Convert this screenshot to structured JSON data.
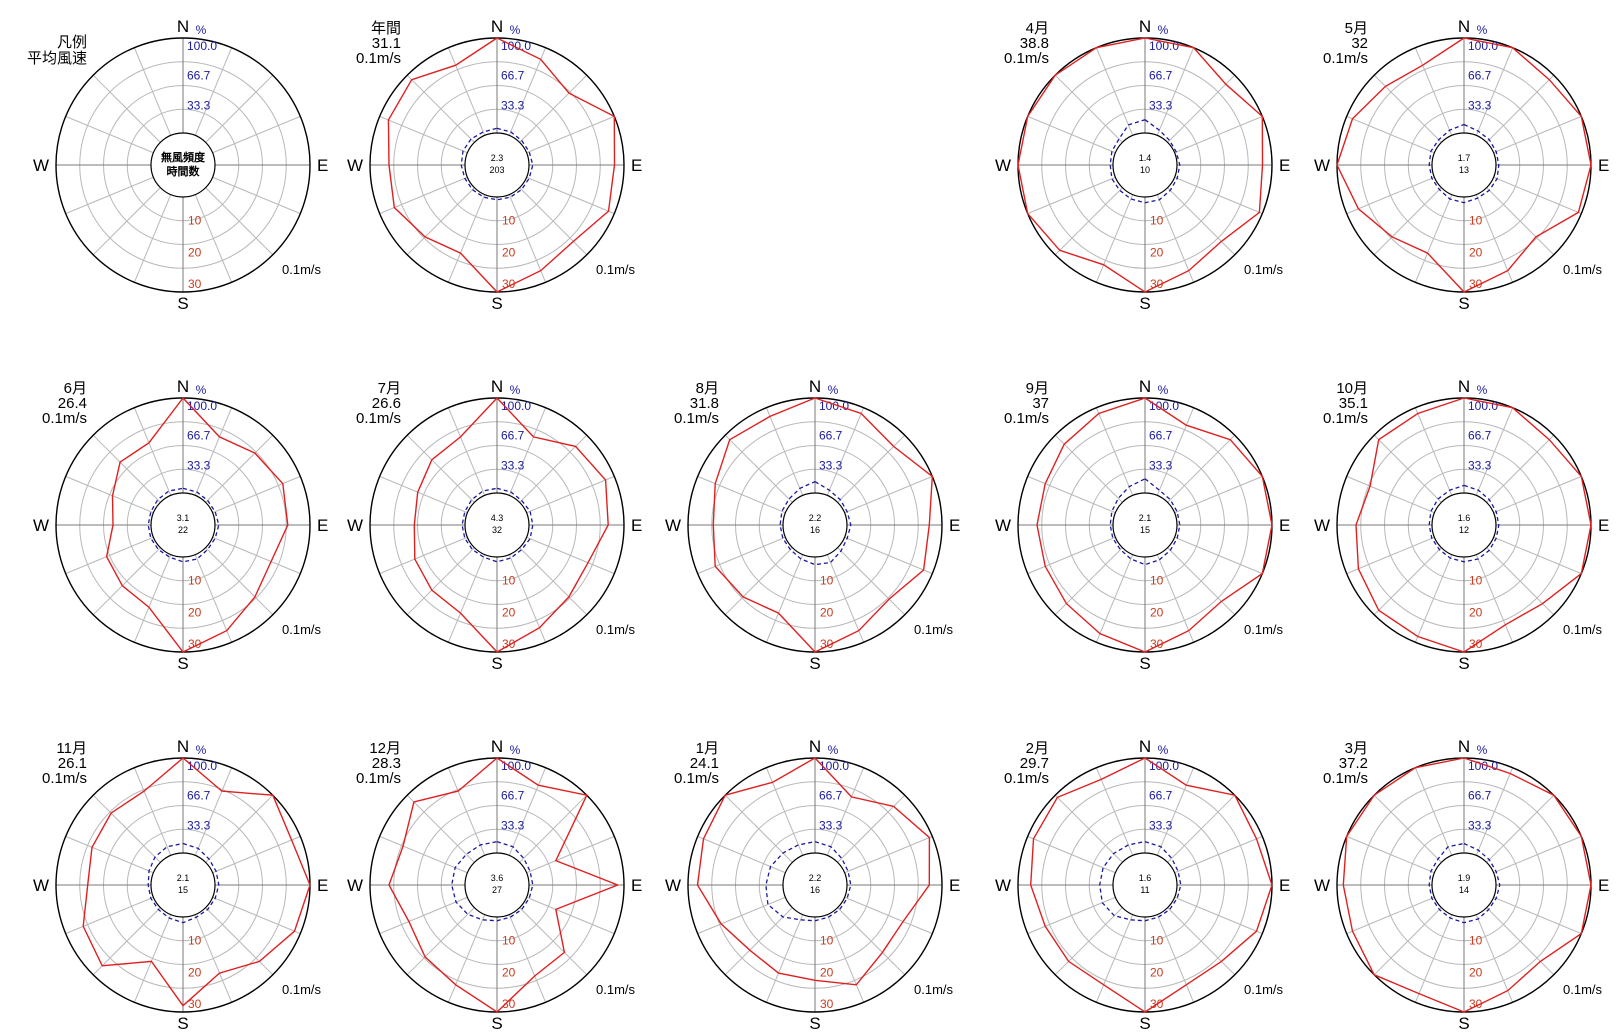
{
  "colors": {
    "speed_line": "#e02020",
    "frequency_line": "#1a1aa0",
    "grid": "#b8b8b8",
    "outline": "#000000",
    "percent_axis_text": "#1a1aa0",
    "speed_axis_text": "#c83c1e"
  },
  "labels": {
    "north": "N",
    "east": "E",
    "south": "S",
    "west": "W",
    "percent_unit": "%",
    "speed_unit": "0.1m/s"
  },
  "percent_ticks": [
    "100.0",
    "66.7",
    "33.3"
  ],
  "speed_ticks": [
    "10",
    "20",
    "30"
  ],
  "legend": {
    "title": "凡例",
    "subtitle": "平均風速",
    "center_line1": "無風頻度",
    "center_line2": "時間数"
  },
  "chart_data": {
    "type": "radar",
    "directions": [
      "N",
      "NNE",
      "NE",
      "ENE",
      "E",
      "ESE",
      "SE",
      "SSE",
      "S",
      "SSW",
      "SW",
      "WSW",
      "W",
      "WNW",
      "NW",
      "NNW"
    ],
    "speed_axis": {
      "label": "0.1m/s",
      "range": [
        0,
        30
      ],
      "ticks": [
        10,
        20,
        30
      ]
    },
    "frequency_axis": {
      "label": "%",
      "range": [
        0,
        100
      ],
      "ticks": [
        33.3,
        66.7,
        100.0
      ]
    },
    "series_kinds": [
      "speed",
      "frequency"
    ],
    "panels": [
      {
        "label": "年間",
        "mean_speed": "31.1",
        "calm": "2.3",
        "hours": "203",
        "speed": [
          30,
          26,
          22,
          30,
          27,
          28,
          24,
          26,
          30,
          20,
          22,
          25,
          24,
          27,
          28,
          24
        ],
        "frequency": [
          5,
          4,
          3,
          3,
          4,
          3,
          3,
          3,
          3,
          3,
          3,
          3,
          4,
          5,
          5,
          4
        ]
      },
      {
        "label": "4月",
        "mean_speed": "38.8",
        "calm": "1.4",
        "hours": "10",
        "speed": [
          30,
          32,
          26,
          30,
          27,
          29,
          24,
          26,
          30,
          24,
          28,
          30,
          30,
          33,
          32,
          30
        ],
        "frequency": [
          14,
          6,
          3,
          2,
          3,
          3,
          4,
          6,
          6,
          5,
          4,
          4,
          3,
          4,
          5,
          12
        ]
      },
      {
        "label": "5月",
        "mean_speed": "32",
        "calm": "1.7",
        "hours": "13",
        "speed": [
          30,
          30,
          28,
          30,
          30,
          29,
          22,
          26,
          30,
          20,
          22,
          26,
          30,
          28,
          25,
          24
        ],
        "frequency": [
          9,
          5,
          4,
          3,
          3,
          4,
          4,
          4,
          6,
          5,
          3,
          3,
          3,
          4,
          4,
          6
        ]
      },
      {
        "label": "6月",
        "mean_speed": "26.4",
        "calm": "3.1",
        "hours": "22",
        "speed": [
          30,
          20,
          22,
          24,
          23,
          20,
          22,
          26,
          30,
          18,
          17,
          16,
          12,
          14,
          18,
          18
        ],
        "frequency": [
          5,
          4,
          3,
          3,
          4,
          3,
          3,
          5,
          5,
          3,
          3,
          3,
          3,
          3,
          4,
          5
        ]
      },
      {
        "label": "7月",
        "mean_speed": "26.6",
        "calm": "4.3",
        "hours": "32",
        "speed": [
          30,
          20,
          25,
          27,
          25,
          21,
          22,
          25,
          30,
          20,
          19,
          18,
          16,
          17,
          19,
          20
        ],
        "frequency": [
          5,
          4,
          3,
          4,
          4,
          4,
          3,
          4,
          5,
          3,
          3,
          3,
          3,
          3,
          4,
          5
        ]
      },
      {
        "label": "8月",
        "mean_speed": "31.8",
        "calm": "2.2",
        "hours": "16",
        "speed": [
          30,
          28,
          25,
          30,
          26,
          27,
          23,
          26,
          30,
          20,
          22,
          24,
          22,
          24,
          28,
          27
        ],
        "frequency": [
          12,
          6,
          4,
          3,
          4,
          3,
          5,
          9,
          8,
          5,
          3,
          3,
          3,
          4,
          5,
          8
        ]
      },
      {
        "label": "9月",
        "mean_speed": "37",
        "calm": "2.1",
        "hours": "15",
        "speed": [
          30,
          24,
          28,
          32,
          30,
          30,
          24,
          26,
          30,
          27,
          25,
          24,
          24,
          24,
          26,
          28
        ],
        "frequency": [
          15,
          6,
          4,
          3,
          3,
          3,
          4,
          6,
          8,
          5,
          3,
          3,
          3,
          4,
          6,
          10
        ]
      },
      {
        "label": "10月",
        "mean_speed": "35.1",
        "calm": "1.6",
        "hours": "12",
        "speed": [
          30,
          30,
          28,
          30,
          30,
          32,
          25,
          24,
          30,
          28,
          28,
          26,
          24,
          22,
          28,
          28
        ],
        "frequency": [
          8,
          6,
          4,
          3,
          3,
          3,
          4,
          5,
          5,
          4,
          3,
          3,
          3,
          4,
          5,
          6
        ]
      },
      {
        "label": "11月",
        "mean_speed": "26.1",
        "calm": "2.1",
        "hours": "15",
        "speed": [
          30,
          22,
          30,
          27,
          30,
          28,
          24,
          20,
          28,
          16,
          26,
          24,
          20,
          21,
          22,
          22
        ],
        "frequency": [
          10,
          8,
          5,
          4,
          4,
          3,
          3,
          3,
          6,
          4,
          3,
          3,
          3,
          5,
          8,
          10
        ]
      },
      {
        "label": "12月",
        "mean_speed": "28.3",
        "calm": "3.6",
        "hours": "27",
        "speed": [
          30,
          24,
          40,
          10,
          28,
          10,
          20,
          21,
          30,
          24,
          22,
          20,
          24,
          22,
          27,
          22
        ],
        "frequency": [
          12,
          10,
          6,
          4,
          4,
          3,
          3,
          3,
          4,
          6,
          10,
          13,
          14,
          14,
          12,
          12
        ]
      },
      {
        "label": "1月",
        "mean_speed": "24.1",
        "calm": "2.2",
        "hours": "16",
        "speed": [
          30,
          20,
          25,
          29,
          26,
          20,
          20,
          24,
          20,
          20,
          19,
          22,
          27,
          28,
          30,
          25
        ],
        "frequency": [
          12,
          10,
          6,
          4,
          4,
          3,
          3,
          3,
          4,
          6,
          14,
          20,
          18,
          17,
          14,
          12
        ]
      },
      {
        "label": "2月",
        "mean_speed": "29.7",
        "calm": "1.6",
        "hours": "11",
        "speed": [
          30,
          24,
          30,
          28,
          30,
          28,
          24,
          24,
          30,
          24,
          24,
          24,
          26,
          28,
          29,
          26
        ],
        "frequency": [
          12,
          10,
          6,
          4,
          4,
          3,
          3,
          3,
          4,
          6,
          12,
          15,
          14,
          14,
          13,
          12
        ]
      },
      {
        "label": "3月",
        "mean_speed": "37.2",
        "calm": "1.9",
        "hours": "14",
        "speed": [
          30,
          28,
          30,
          30,
          30,
          34,
          24,
          26,
          30,
          27,
          30,
          28,
          28,
          30,
          32,
          30
        ],
        "frequency": [
          10,
          6,
          4,
          3,
          4,
          3,
          3,
          5,
          6,
          4,
          3,
          3,
          3,
          4,
          5,
          10
        ]
      }
    ]
  }
}
